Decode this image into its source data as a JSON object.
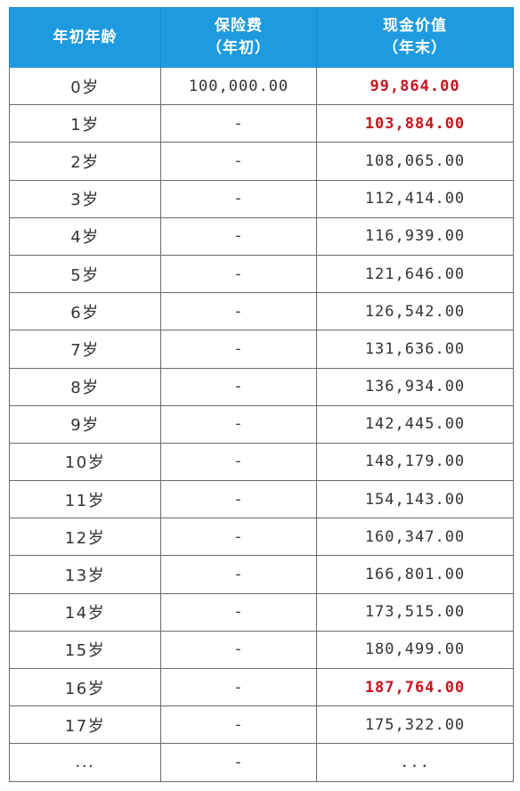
{
  "table": {
    "headers": {
      "age": "年初年龄",
      "premium_line1": "保险费",
      "premium_line2": "（年初）",
      "cash_line1": "现金价值",
      "cash_line2": "（年末）"
    },
    "rows": [
      {
        "age": "0岁",
        "premium": "100,000.00",
        "cash": "99,864.00",
        "highlight": true
      },
      {
        "age": "1岁",
        "premium": "-",
        "cash": "103,884.00",
        "highlight": true
      },
      {
        "age": "2岁",
        "premium": "-",
        "cash": "108,065.00",
        "highlight": false
      },
      {
        "age": "3岁",
        "premium": "-",
        "cash": "112,414.00",
        "highlight": false
      },
      {
        "age": "4岁",
        "premium": "-",
        "cash": "116,939.00",
        "highlight": false
      },
      {
        "age": "5岁",
        "premium": "-",
        "cash": "121,646.00",
        "highlight": false
      },
      {
        "age": "6岁",
        "premium": "-",
        "cash": "126,542.00",
        "highlight": false
      },
      {
        "age": "7岁",
        "premium": "-",
        "cash": "131,636.00",
        "highlight": false
      },
      {
        "age": "8岁",
        "premium": "-",
        "cash": "136,934.00",
        "highlight": false
      },
      {
        "age": "9岁",
        "premium": "-",
        "cash": "142,445.00",
        "highlight": false
      },
      {
        "age": "10岁",
        "premium": "-",
        "cash": "148,179.00",
        "highlight": false
      },
      {
        "age": "11岁",
        "premium": "-",
        "cash": "154,143.00",
        "highlight": false
      },
      {
        "age": "12岁",
        "premium": "-",
        "cash": "160,347.00",
        "highlight": false
      },
      {
        "age": "13岁",
        "premium": "-",
        "cash": "166,801.00",
        "highlight": false
      },
      {
        "age": "14岁",
        "premium": "-",
        "cash": "173,515.00",
        "highlight": false
      },
      {
        "age": "15岁",
        "premium": "-",
        "cash": "180,499.00",
        "highlight": false
      },
      {
        "age": "16岁",
        "premium": "-",
        "cash": "187,764.00",
        "highlight": true
      },
      {
        "age": "17岁",
        "premium": "-",
        "cash": "175,322.00",
        "highlight": false
      },
      {
        "age": "...",
        "premium": "-",
        "cash": "...",
        "highlight": false
      }
    ],
    "colors": {
      "header_bg": "#1e9be0",
      "header_text": "#ffffff",
      "highlight_text": "#c8141e",
      "body_text": "#333333",
      "border": "#6a6a6a"
    }
  }
}
